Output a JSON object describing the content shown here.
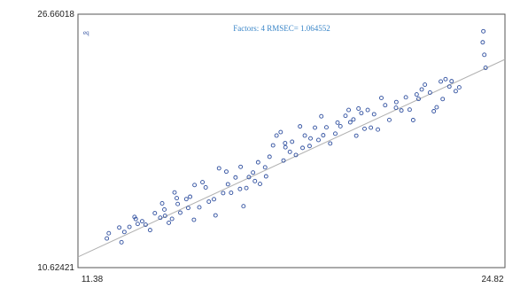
{
  "chart_data": {
    "type": "scatter",
    "title": "Factors: 4 RMSEC= 1.064552",
    "corner_label": "eq",
    "xlim": [
      11.38,
      24.82
    ],
    "ylim": [
      10.62421,
      26.66018
    ],
    "tick_labels": {
      "x_min": "11.38",
      "x_max": "24.82",
      "y_min": "10.62421",
      "y_max": "26.66018"
    },
    "grid": false,
    "regression_line": {
      "x": [
        11.38,
        24.82
      ],
      "y": [
        11.3,
        23.8
      ]
    },
    "colors": {
      "points": "#2f4f9f",
      "line": "#b0b0b0",
      "title": "#3a86c8",
      "frame": "#555555"
    },
    "points": [
      [
        12.29,
        12.47
      ],
      [
        12.75,
        12.23
      ],
      [
        12.84,
        12.88
      ],
      [
        12.68,
        13.16
      ],
      [
        13.26,
        13.39
      ],
      [
        13.16,
        13.83
      ],
      [
        13.4,
        13.56
      ],
      [
        13.51,
        13.34
      ],
      [
        13.8,
        14.07
      ],
      [
        13.97,
        13.78
      ],
      [
        14.12,
        13.9
      ],
      [
        14.03,
        14.69
      ],
      [
        14.24,
        13.46
      ],
      [
        14.34,
        13.71
      ],
      [
        14.52,
        14.65
      ],
      [
        14.49,
        15.02
      ],
      [
        14.42,
        15.38
      ],
      [
        14.79,
        14.96
      ],
      [
        14.91,
        15.11
      ],
      [
        15.05,
        15.85
      ],
      [
        15.2,
        14.44
      ],
      [
        15.03,
        13.65
      ],
      [
        15.3,
        16.03
      ],
      [
        15.66,
        14.95
      ],
      [
        15.82,
        16.91
      ],
      [
        15.95,
        15.34
      ],
      [
        15.71,
        13.93
      ],
      [
        16.2,
        15.36
      ],
      [
        16.34,
        16.33
      ],
      [
        16.48,
        15.6
      ],
      [
        16.59,
        14.51
      ],
      [
        16.68,
        15.66
      ],
      [
        16.76,
        16.35
      ],
      [
        16.89,
        16.64
      ],
      [
        17.05,
        17.29
      ],
      [
        17.11,
        15.92
      ],
      [
        17.27,
        16.97
      ],
      [
        17.41,
        17.64
      ],
      [
        17.52,
        18.36
      ],
      [
        17.63,
        18.98
      ],
      [
        17.76,
        19.2
      ],
      [
        17.91,
        18.24
      ],
      [
        18.12,
        18.59
      ],
      [
        18.24,
        17.75
      ],
      [
        18.37,
        19.56
      ],
      [
        18.52,
        18.98
      ],
      [
        18.67,
        18.32
      ],
      [
        18.84,
        19.48
      ],
      [
        19.04,
        20.2
      ],
      [
        19.2,
        19.5
      ],
      [
        19.32,
        18.48
      ],
      [
        19.48,
        19.1
      ],
      [
        19.64,
        19.57
      ],
      [
        19.8,
        20.23
      ],
      [
        19.95,
        19.82
      ],
      [
        20.14,
        18.97
      ],
      [
        20.21,
        20.69
      ],
      [
        20.4,
        19.41
      ],
      [
        20.6,
        19.48
      ],
      [
        20.7,
        20.33
      ],
      [
        20.82,
        19.36
      ],
      [
        20.93,
        21.36
      ],
      [
        21.18,
        19.97
      ],
      [
        21.39,
        20.74
      ],
      [
        21.56,
        20.57
      ],
      [
        21.82,
        20.62
      ],
      [
        21.93,
        19.96
      ],
      [
        22.04,
        21.58
      ],
      [
        22.3,
        22.2
      ],
      [
        22.46,
        21.7
      ],
      [
        22.58,
        20.52
      ],
      [
        22.67,
        20.77
      ],
      [
        22.86,
        21.29
      ],
      [
        22.95,
        22.55
      ],
      [
        23.07,
        22.08
      ],
      [
        23.14,
        22.42
      ],
      [
        23.27,
        21.79
      ],
      [
        23.38,
        22.03
      ],
      [
        24.12,
        24.88
      ],
      [
        24.14,
        25.58
      ],
      [
        24.17,
        24.09
      ],
      [
        24.21,
        23.27
      ],
      [
        12.35,
        12.8
      ],
      [
        13.0,
        13.2
      ],
      [
        13.65,
        13.0
      ],
      [
        14.6,
        14.1
      ],
      [
        15.5,
        14.8
      ],
      [
        16.1,
        15.9
      ],
      [
        16.95,
        16.1
      ],
      [
        17.3,
        16.4
      ],
      [
        17.85,
        17.4
      ],
      [
        18.05,
        17.95
      ],
      [
        18.45,
        18.2
      ],
      [
        18.95,
        18.7
      ],
      [
        19.55,
        19.8
      ],
      [
        20.05,
        20.0
      ],
      [
        20.5,
        20.6
      ],
      [
        21.05,
        20.9
      ],
      [
        21.7,
        21.4
      ],
      [
        22.2,
        21.9
      ],
      [
        22.8,
        22.4
      ],
      [
        14.1,
        14.3
      ],
      [
        15.4,
        15.7
      ],
      [
        16.5,
        17.0
      ],
      [
        17.9,
        18.5
      ],
      [
        19.1,
        19.0
      ],
      [
        20.3,
        20.4
      ],
      [
        21.4,
        21.1
      ],
      [
        13.2,
        13.7
      ],
      [
        14.85,
        14.4
      ],
      [
        16.05,
        16.7
      ],
      [
        18.7,
        18.8
      ],
      [
        19.9,
        20.6
      ],
      [
        22.1,
        21.3
      ]
    ]
  }
}
